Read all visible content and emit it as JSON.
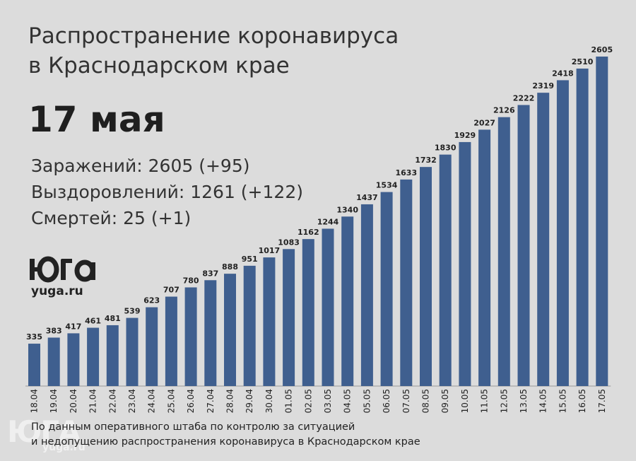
{
  "title_line1": "Распространение коронавируса",
  "title_line2": "в Краснодарском крае",
  "date": "17 мая",
  "stats": {
    "infected": "Заражений: 2605 (+95)",
    "recovered": "Выздоровлений: 1261 (+122)",
    "deaths": "Смертей: 25 (+1)"
  },
  "logo": {
    "mark": "ЮГА",
    "site": "yuga.ru"
  },
  "footer": {
    "line1": "По данным оперативного штаба по контролю за ситуацией",
    "line2": "и недопущению распространения коронавируса в Краснодарском крае"
  },
  "watermark": {
    "mark": "ЮГА",
    "site": "yuga.ru"
  },
  "colors": {
    "bar": "#3f5f8f",
    "background": "#dcdcdc"
  },
  "chart_data": {
    "type": "bar",
    "categories": [
      "18.04",
      "19.04",
      "20.04",
      "21.04",
      "22.04",
      "23.04",
      "24.04",
      "25.04",
      "26.04",
      "27.04",
      "28.04",
      "29.04",
      "30.04",
      "01.05",
      "02.05",
      "03.05",
      "04.05",
      "05.05",
      "06.05",
      "07.05",
      "08.05",
      "09.05",
      "10.05",
      "11.05",
      "12.05",
      "13.05",
      "14.05",
      "15.05",
      "16.05",
      "17.05"
    ],
    "values": [
      335,
      383,
      417,
      461,
      481,
      539,
      623,
      707,
      780,
      837,
      888,
      951,
      1017,
      1083,
      1162,
      1244,
      1340,
      1437,
      1534,
      1633,
      1732,
      1830,
      1929,
      2027,
      2126,
      2222,
      2319,
      2418,
      2510,
      2605
    ],
    "title": "Распространение коронавируса в Краснодарском крае",
    "xlabel": "",
    "ylabel": "",
    "ylim": [
      0,
      2605
    ],
    "grid": false,
    "legend": "none"
  }
}
